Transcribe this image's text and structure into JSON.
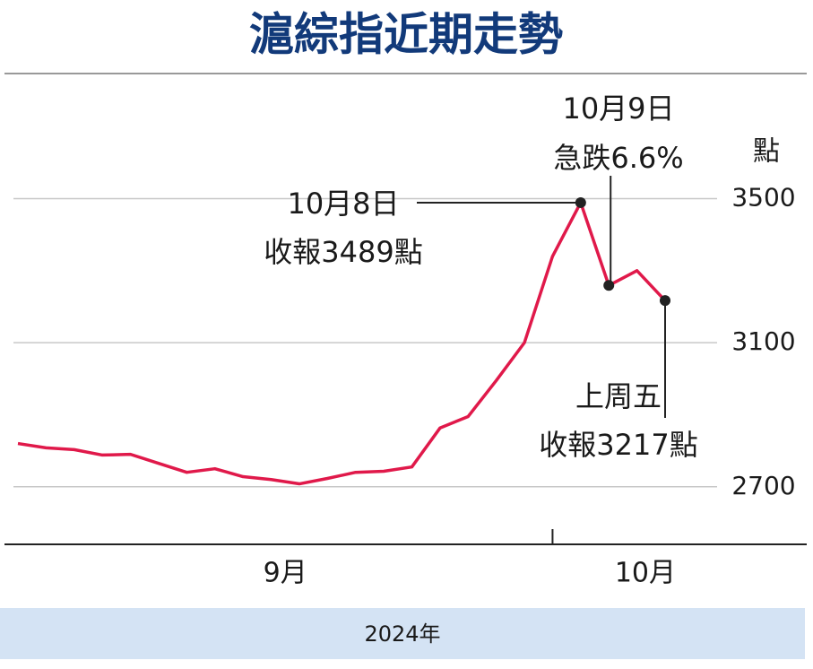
{
  "chart_data": {
    "type": "line",
    "title": "滬綜指近期走勢",
    "y_unit": "點",
    "categories": [
      null,
      null,
      null,
      null,
      null,
      null,
      null,
      null,
      null,
      null,
      null,
      null,
      null,
      null,
      null,
      null,
      null,
      null,
      null,
      null,
      null,
      null,
      null,
      null
    ],
    "x_groups": [
      {
        "label": "9月",
        "count": 20
      },
      {
        "label": "10月",
        "count": 4
      }
    ],
    "x_footer": "2024年",
    "series": [
      {
        "name": "滬綜指",
        "color": "#e0194a",
        "values": [
          2820,
          2808,
          2803,
          2788,
          2790,
          2765,
          2740,
          2750,
          2728,
          2720,
          2708,
          2723,
          2740,
          2743,
          2755,
          2863,
          2895,
          2995,
          3100,
          3340,
          3489,
          3259,
          3300,
          3217
        ]
      }
    ],
    "ylim": [
      2540,
      3840
    ],
    "yticks": [
      2700,
      3100,
      3500
    ],
    "grid": true,
    "annotations": [
      {
        "lines": [
          "10月8日",
          "收報3489點"
        ]
      },
      {
        "lines": [
          "10月9日",
          "急跌6.6%"
        ]
      },
      {
        "lines": [
          "上周五",
          "收報3217點"
        ]
      }
    ]
  }
}
